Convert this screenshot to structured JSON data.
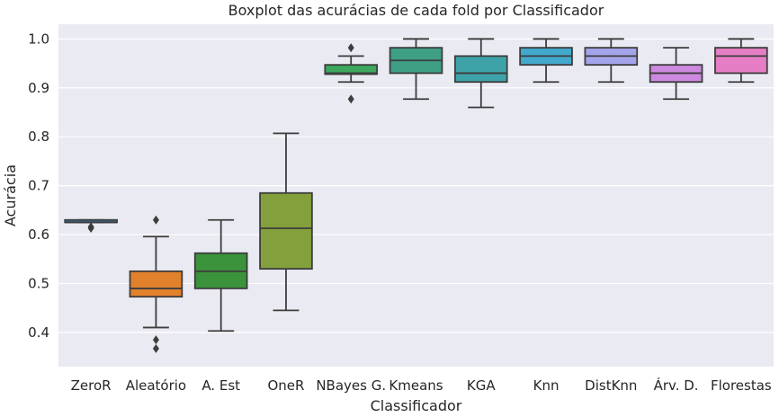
{
  "chart_data": {
    "type": "boxplot",
    "title": "Boxplot das acurácias de cada fold por Classificador",
    "xlabel": "Classificador",
    "ylabel": "Acurácia",
    "ylim": [
      0.33,
      1.03
    ],
    "yticks": [
      0.4,
      0.5,
      0.6,
      0.7,
      0.8,
      0.9,
      1.0
    ],
    "ytick_labels": [
      "0.4",
      "0.5",
      "0.6",
      "0.7",
      "0.8",
      "0.9",
      "1.0"
    ],
    "grid": true,
    "background": "#eaeaf2",
    "categories": [
      "ZeroR",
      "Aleatório",
      "A. Est",
      "OneR",
      "NBayes G.",
      "Kmeans",
      "KGA",
      "Knn",
      "DistKnn",
      "Árv. D.",
      "Florestas"
    ],
    "boxes": [
      {
        "label": "ZeroR",
        "whislo": 0.625,
        "q1": 0.625,
        "med": 0.625,
        "q3": 0.63,
        "whishi": 0.63,
        "fliers": [
          0.613,
          0.616
        ],
        "color": "#3274a1"
      },
      {
        "label": "Aleatório",
        "whislo": 0.41,
        "q1": 0.473,
        "med": 0.49,
        "q3": 0.525,
        "whishi": 0.596,
        "fliers": [
          0.63,
          0.385,
          0.367
        ],
        "color": "#e1812c"
      },
      {
        "label": "A. Est",
        "whislo": 0.403,
        "q1": 0.49,
        "med": 0.525,
        "q3": 0.562,
        "whishi": 0.63,
        "fliers": [],
        "color": "#3a923a"
      },
      {
        "label": "OneR",
        "whislo": 0.445,
        "q1": 0.53,
        "med": 0.613,
        "q3": 0.685,
        "whishi": 0.807,
        "fliers": [],
        "color": "#84a03d"
      },
      {
        "label": "NBayes G.",
        "whislo": 0.912,
        "q1": 0.928,
        "med": 0.93,
        "q3": 0.947,
        "whishi": 0.965,
        "fliers": [
          0.982,
          0.877
        ],
        "color": "#3da85d"
      },
      {
        "label": "Kmeans",
        "whislo": 0.877,
        "q1": 0.93,
        "med": 0.956,
        "q3": 0.982,
        "whishi": 1.0,
        "fliers": [],
        "color": "#3e9f84"
      },
      {
        "label": "KGA",
        "whislo": 0.86,
        "q1": 0.912,
        "med": 0.93,
        "q3": 0.965,
        "whishi": 1.0,
        "fliers": [],
        "color": "#3ea3a8"
      },
      {
        "label": "Knn",
        "whislo": 0.912,
        "q1": 0.947,
        "med": 0.965,
        "q3": 0.982,
        "whishi": 1.0,
        "fliers": [],
        "color": "#42a9cc"
      },
      {
        "label": "DistKnn",
        "whislo": 0.912,
        "q1": 0.947,
        "med": 0.965,
        "q3": 0.982,
        "whishi": 1.0,
        "fliers": [],
        "color": "#a4a4ec"
      },
      {
        "label": "Árv. D.",
        "whislo": 0.877,
        "q1": 0.912,
        "med": 0.93,
        "q3": 0.947,
        "whishi": 0.982,
        "fliers": [],
        "color": "#cd88e0"
      },
      {
        "label": "Florestas",
        "whislo": 0.912,
        "q1": 0.93,
        "med": 0.965,
        "q3": 0.982,
        "whishi": 1.0,
        "fliers": [],
        "color": "#e57ec4"
      }
    ]
  }
}
